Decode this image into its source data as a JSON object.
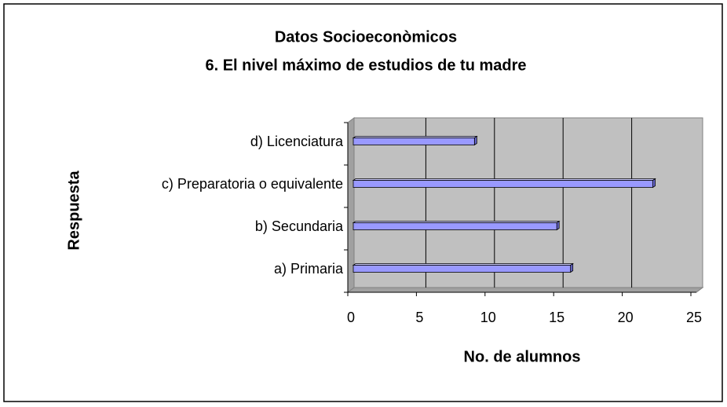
{
  "chart_data": {
    "type": "bar",
    "orientation": "horizontal",
    "title": "Datos Socioeconòmicos",
    "subtitle": "6. El nivel máximo de estudios de tu madre",
    "x_label": "No. de alumnos",
    "y_label": "Respuesta",
    "categories": [
      "a) Primaria",
      "b) Secundaria",
      "c) Preparatoria o equivalente",
      "d) Licenciatura"
    ],
    "values": [
      16,
      15,
      22,
      9
    ],
    "color": "#9999ff",
    "xlim": [
      0,
      25
    ],
    "xticks": [
      0,
      5,
      10,
      15,
      20,
      25
    ],
    "grid": true
  }
}
